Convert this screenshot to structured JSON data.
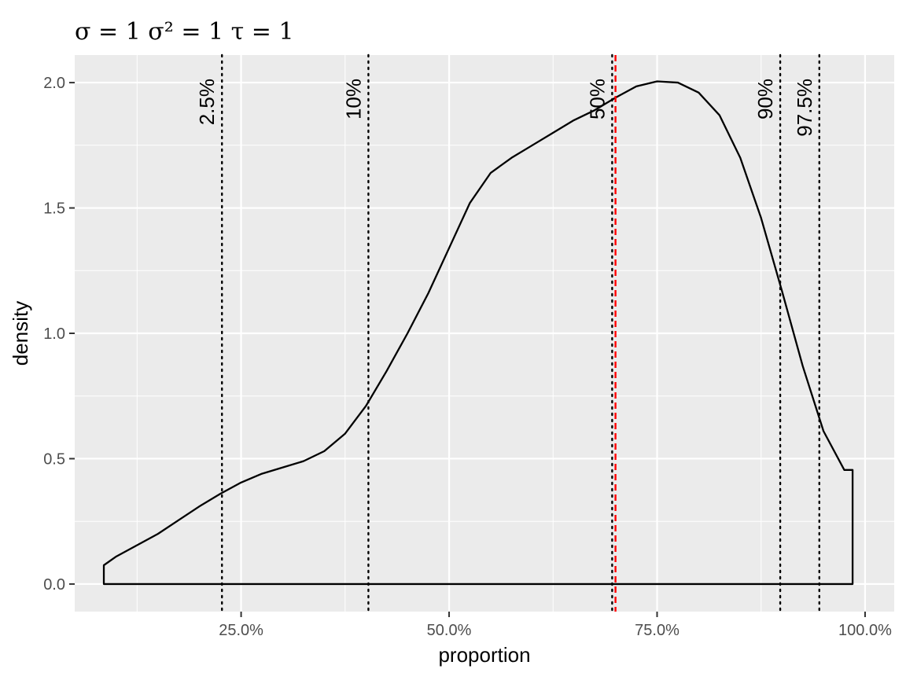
{
  "chart_data": {
    "type": "area",
    "title": "σ = 1  σ² = 1  τ = 1",
    "xlabel": "proportion",
    "ylabel": "density",
    "xlim": [
      0.05,
      1.035
    ],
    "ylim": [
      -0.11,
      2.11
    ],
    "x_ticks": [
      {
        "value": 0.25,
        "label": "25.0%"
      },
      {
        "value": 0.5,
        "label": "50.0%"
      },
      {
        "value": 0.75,
        "label": "75.0%"
      },
      {
        "value": 1.0,
        "label": "100.0%"
      }
    ],
    "x_minor": [
      0.125,
      0.375,
      0.625,
      0.875
    ],
    "y_ticks": [
      {
        "value": 0.0,
        "label": "0.0"
      },
      {
        "value": 0.5,
        "label": "0.5"
      },
      {
        "value": 1.0,
        "label": "1.0"
      },
      {
        "value": 1.5,
        "label": "1.5"
      },
      {
        "value": 2.0,
        "label": "2.0"
      }
    ],
    "y_minor": [
      0.25,
      0.75,
      1.25,
      1.75
    ],
    "grid": true,
    "density": {
      "x": [
        0.085,
        0.1,
        0.125,
        0.15,
        0.175,
        0.2,
        0.225,
        0.25,
        0.275,
        0.3,
        0.325,
        0.35,
        0.375,
        0.4,
        0.425,
        0.45,
        0.475,
        0.5,
        0.525,
        0.55,
        0.575,
        0.6,
        0.625,
        0.65,
        0.675,
        0.7,
        0.725,
        0.75,
        0.775,
        0.8,
        0.825,
        0.85,
        0.875,
        0.9,
        0.925,
        0.95,
        0.975,
        0.985
      ],
      "y": [
        0.075,
        0.11,
        0.155,
        0.2,
        0.255,
        0.31,
        0.36,
        0.405,
        0.44,
        0.465,
        0.49,
        0.53,
        0.6,
        0.71,
        0.85,
        1.0,
        1.16,
        1.34,
        1.52,
        1.64,
        1.7,
        1.75,
        1.8,
        1.85,
        1.89,
        1.94,
        1.985,
        2.005,
        2.0,
        1.96,
        1.87,
        1.7,
        1.46,
        1.17,
        0.87,
        0.61,
        0.455,
        0.455
      ]
    },
    "quantiles": [
      {
        "label": "2.5%",
        "value": 0.227
      },
      {
        "label": "10%",
        "value": 0.403
      },
      {
        "label": "50%",
        "value": 0.696
      },
      {
        "label": "90%",
        "value": 0.898
      },
      {
        "label": "97.5%",
        "value": 0.945
      }
    ],
    "reference_line": {
      "value": 0.7,
      "color": "#ff0000",
      "style": "dashed"
    },
    "colors": {
      "panel": "#ebebeb",
      "grid": "#ffffff",
      "curve": "#000000",
      "reference": "#ff0000"
    }
  }
}
